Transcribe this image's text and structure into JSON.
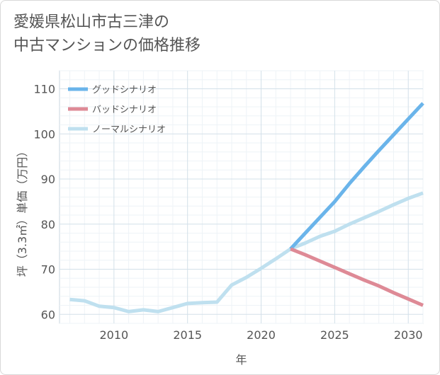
{
  "title": [
    "愛媛県松山市古三津の",
    "中古マンションの価格推移"
  ],
  "chart_data": {
    "type": "line",
    "xlabel": "年",
    "ylabel": "坪（3.3㎡）単価（万円）",
    "xlim": [
      2006.3,
      2031
    ],
    "ylim": [
      58,
      114
    ],
    "xticks": [
      2010,
      2015,
      2020,
      2025,
      2030
    ],
    "yticks": [
      60,
      70,
      80,
      90,
      100,
      110
    ],
    "grid": true,
    "legend_position": "top-left",
    "series": [
      {
        "name": "グッドシナリオ",
        "color": "#6ab4ea",
        "x": [
          2022,
          2023,
          2024,
          2025,
          2026,
          2027,
          2028,
          2029,
          2030,
          2031
        ],
        "y": [
          74.5,
          78.0,
          81.5,
          85.0,
          89.0,
          92.7,
          96.3,
          99.8,
          103.3,
          106.8
        ]
      },
      {
        "name": "バッドシナリオ",
        "color": "#de8a96",
        "x": [
          2022,
          2023,
          2024,
          2025,
          2026,
          2027,
          2028,
          2029,
          2030,
          2031
        ],
        "y": [
          74.5,
          73.2,
          71.8,
          70.4,
          69.0,
          67.6,
          66.3,
          64.8,
          63.4,
          62.0
        ]
      },
      {
        "name": "ノーマルシナリオ",
        "color": "#bfe0ef",
        "x": [
          2007,
          2008,
          2009,
          2010,
          2011,
          2012,
          2013,
          2014,
          2015,
          2016,
          2017,
          2018,
          2019,
          2020,
          2021,
          2022,
          2023,
          2024,
          2025,
          2026,
          2027,
          2028,
          2029,
          2030,
          2031
        ],
        "y": [
          63.3,
          63.0,
          61.8,
          61.5,
          60.6,
          61.0,
          60.6,
          61.5,
          62.4,
          62.6,
          62.7,
          66.5,
          68.2,
          70.2,
          72.3,
          74.5,
          75.8,
          77.3,
          78.4,
          80.0,
          81.4,
          82.8,
          84.3,
          85.7,
          86.9
        ]
      }
    ]
  }
}
